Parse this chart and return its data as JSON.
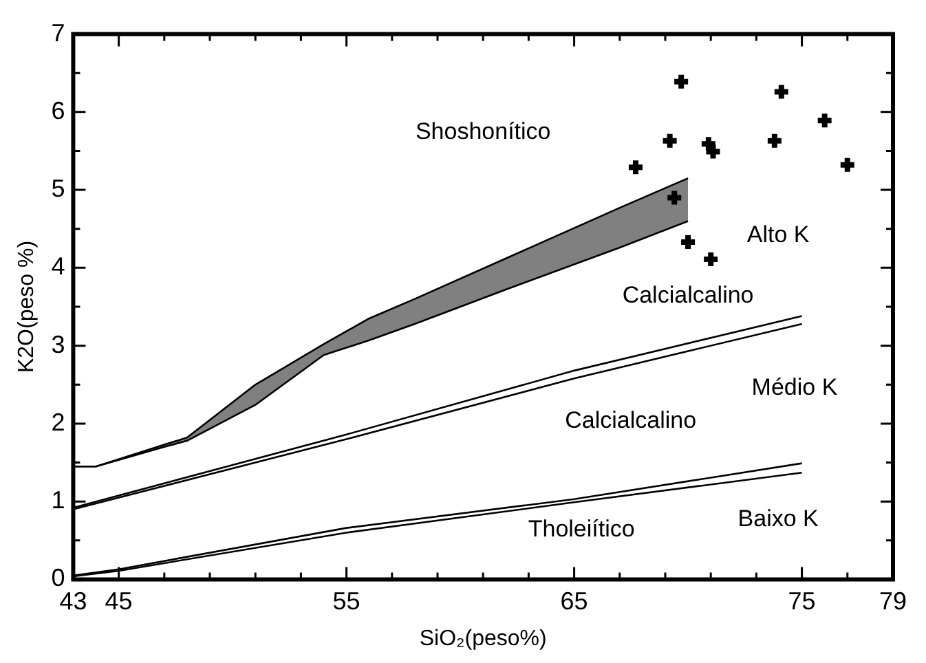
{
  "chart_data": {
    "type": "scatter",
    "xlabel": "SiO₂(peso%)",
    "ylabel": "K2O(peso %)",
    "xlim": [
      43,
      79
    ],
    "xticks": [
      43,
      45,
      {
        "value": 47,
        "label": null
      },
      {
        "value": 49,
        "label": null
      },
      {
        "value": 51,
        "label": null
      },
      {
        "value": 53,
        "label": null
      },
      55,
      {
        "value": 57,
        "label": null
      },
      {
        "value": 59,
        "label": null
      },
      {
        "value": 61,
        "label": null
      },
      {
        "value": 63,
        "label": null
      },
      65,
      {
        "value": 67,
        "label": null
      },
      {
        "value": 69,
        "label": null
      },
      {
        "value": 71,
        "label": null
      },
      {
        "value": 73,
        "label": null
      },
      75,
      {
        "value": 77,
        "label": null
      },
      79
    ],
    "ylim": [
      0,
      7
    ],
    "yticks": [
      0,
      {
        "value": 0.5,
        "label": null
      },
      1,
      {
        "value": 1.5,
        "label": null
      },
      2,
      {
        "value": 2.5,
        "label": null
      },
      3,
      {
        "value": 3.5,
        "label": null
      },
      4,
      {
        "value": 4.5,
        "label": null
      },
      5,
      {
        "value": 5.5,
        "label": null
      },
      6,
      {
        "value": 6.5,
        "label": null
      },
      7
    ],
    "series": [
      {
        "marker": "cross",
        "color": "#000000",
        "x": [
          69.7,
          74.1,
          76.0,
          69.2,
          70.9,
          71.1,
          73.8,
          77.0,
          67.7,
          69.4,
          70.0,
          71.0
        ],
        "values": [
          6.39,
          6.26,
          5.89,
          5.63,
          5.59,
          5.49,
          5.63,
          5.32,
          5.29,
          4.9,
          4.33,
          4.11
        ]
      },
      {
        "type": "line",
        "color": "#808080",
        "x": [
          43,
          44,
          47,
          48,
          51,
          54,
          56,
          58,
          62,
          67,
          70
        ],
        "values": [
          null,
          null,
          null,
          null,
          null,
          null,
          null,
          null,
          null,
          null,
          null
        ],
        "lower": [
          1.45,
          1.45,
          1.7,
          1.78,
          2.24,
          2.88,
          3.07,
          3.28,
          3.72,
          4.26,
          4.6
        ],
        "upper": [
          1.45,
          1.45,
          1.73,
          1.82,
          2.5,
          3.02,
          3.35,
          3.6,
          4.12,
          4.77,
          5.15
        ]
      },
      {
        "type": "line",
        "color": "#000000",
        "x": [
          43,
          44,
          47,
          48,
          51,
          54,
          56,
          58,
          62,
          67,
          70
        ],
        "values": [
          1.45,
          1.45,
          1.7,
          1.78,
          2.24,
          2.88,
          3.07,
          3.28,
          3.72,
          4.26,
          4.6
        ]
      },
      {
        "type": "line",
        "color": "#000000",
        "x": [
          43,
          44,
          47,
          48,
          51,
          54,
          56,
          58,
          62,
          67,
          70
        ],
        "values": [
          1.45,
          1.45,
          1.73,
          1.82,
          2.5,
          3.02,
          3.35,
          3.6,
          4.12,
          4.77,
          5.15
        ]
      },
      {
        "type": "line",
        "color": "#000000",
        "x": [
          43,
          55,
          65,
          75
        ],
        "values": [
          0.92,
          1.86,
          2.68,
          3.38
        ]
      },
      {
        "type": "line",
        "color": "#000000",
        "x": [
          43,
          55,
          65,
          75
        ],
        "values": [
          0.9,
          1.8,
          2.58,
          3.28
        ]
      },
      {
        "type": "line",
        "color": "#000000",
        "x": [
          43,
          45,
          55,
          65,
          75
        ],
        "values": [
          0.05,
          0.13,
          0.66,
          1.03,
          1.49
        ]
      },
      {
        "type": "line",
        "color": "#000000",
        "x": [
          43,
          45,
          55,
          65,
          75
        ],
        "values": [
          0.04,
          0.11,
          0.6,
          0.99,
          1.37
        ]
      }
    ],
    "annotations": [
      "Shoshonítico",
      "Alto K",
      "Calcialcalino",
      "Médio K",
      "Calcialcalino",
      "Tholeiítico",
      "Baixo K"
    ]
  }
}
